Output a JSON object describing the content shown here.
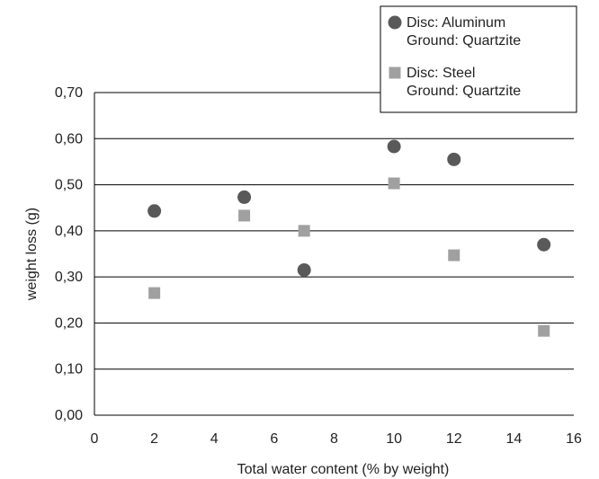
{
  "chart_data": {
    "type": "scatter",
    "xlabel": "Total water content (% by weight)",
    "ylabel": "weight loss (g)",
    "xlim": [
      0,
      16
    ],
    "ylim": [
      0,
      0.7
    ],
    "x_ticks": [
      0,
      2,
      4,
      6,
      8,
      10,
      12,
      14,
      16
    ],
    "x_tick_labels": [
      "0",
      "2",
      "4",
      "6",
      "8",
      "10",
      "12",
      "14",
      "16"
    ],
    "y_ticks": [
      0,
      0.1,
      0.2,
      0.3,
      0.4,
      0.5,
      0.6,
      0.7
    ],
    "y_tick_labels": [
      "0,00",
      "0,10",
      "0,20",
      "0,30",
      "0,40",
      "0,50",
      "0,60",
      "0,70"
    ],
    "grid": "horizontal",
    "legend_position": "top-right",
    "series": [
      {
        "legend_lines": [
          "Disc: Aluminum",
          "Ground: Quartzite"
        ],
        "marker": "circle",
        "color": "#595959",
        "x": [
          2,
          5,
          7,
          10,
          12,
          15
        ],
        "y": [
          0.443,
          0.473,
          0.315,
          0.583,
          0.555,
          0.37
        ]
      },
      {
        "legend_lines": [
          "Disc: Steel",
          "Ground: Quartzite"
        ],
        "marker": "square",
        "color": "#a0a0a0",
        "x": [
          2,
          5,
          7,
          10,
          12,
          15
        ],
        "y": [
          0.265,
          0.433,
          0.4,
          0.503,
          0.347,
          0.183
        ]
      }
    ]
  }
}
